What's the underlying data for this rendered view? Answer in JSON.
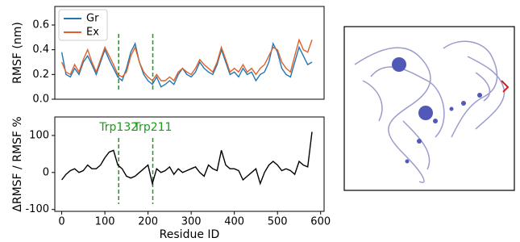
{
  "chart_data": [
    {
      "type": "line",
      "ylabel": "RMSF (nm)",
      "x": [
        0,
        10,
        20,
        30,
        40,
        50,
        60,
        70,
        80,
        90,
        100,
        110,
        120,
        130,
        140,
        150,
        160,
        170,
        180,
        190,
        200,
        210,
        220,
        230,
        240,
        250,
        260,
        270,
        280,
        290,
        300,
        310,
        320,
        330,
        340,
        350,
        360,
        370,
        380,
        390,
        400,
        410,
        420,
        430,
        440,
        450,
        460,
        470,
        480,
        490,
        500,
        510,
        520,
        530,
        540,
        550,
        560,
        570,
        580
      ],
      "series": [
        {
          "name": "Gr",
          "color": "#1f77b4",
          "values": [
            0.38,
            0.2,
            0.18,
            0.25,
            0.2,
            0.3,
            0.35,
            0.28,
            0.2,
            0.3,
            0.4,
            0.32,
            0.25,
            0.18,
            0.15,
            0.25,
            0.38,
            0.45,
            0.3,
            0.2,
            0.15,
            0.12,
            0.18,
            0.1,
            0.12,
            0.15,
            0.12,
            0.2,
            0.25,
            0.2,
            0.18,
            0.22,
            0.3,
            0.25,
            0.22,
            0.2,
            0.28,
            0.4,
            0.3,
            0.2,
            0.22,
            0.18,
            0.25,
            0.2,
            0.22,
            0.15,
            0.2,
            0.22,
            0.3,
            0.45,
            0.38,
            0.25,
            0.2,
            0.18,
            0.3,
            0.42,
            0.35,
            0.28,
            0.3
          ]
        },
        {
          "name": "Ex",
          "color": "#e0612a",
          "values": [
            0.3,
            0.22,
            0.2,
            0.28,
            0.22,
            0.32,
            0.4,
            0.3,
            0.22,
            0.32,
            0.42,
            0.35,
            0.28,
            0.2,
            0.18,
            0.22,
            0.35,
            0.42,
            0.3,
            0.22,
            0.18,
            0.15,
            0.2,
            0.15,
            0.15,
            0.18,
            0.15,
            0.22,
            0.25,
            0.22,
            0.2,
            0.25,
            0.32,
            0.28,
            0.25,
            0.22,
            0.3,
            0.42,
            0.32,
            0.22,
            0.25,
            0.22,
            0.28,
            0.22,
            0.25,
            0.2,
            0.25,
            0.28,
            0.35,
            0.42,
            0.4,
            0.3,
            0.25,
            0.22,
            0.35,
            0.48,
            0.4,
            0.38,
            0.48
          ]
        }
      ],
      "xlim": [
        -16,
        608
      ],
      "ylim": [
        0,
        0.75
      ],
      "yticks": [
        {
          "value": 0,
          "label": "0.0"
        },
        0.2,
        0.4,
        0.6
      ],
      "vlines": [
        {
          "x": 132
        },
        {
          "x": 211
        }
      ],
      "vline_color": "#1a9a1a",
      "legend": "upper left"
    },
    {
      "type": "line",
      "ylabel": "ΔRMSF / RMSF %",
      "xlabel": "Residue ID",
      "x": [
        0,
        10,
        20,
        30,
        40,
        50,
        60,
        70,
        80,
        90,
        100,
        110,
        120,
        130,
        140,
        150,
        160,
        170,
        180,
        190,
        200,
        210,
        220,
        230,
        240,
        250,
        260,
        270,
        280,
        290,
        300,
        310,
        320,
        330,
        340,
        350,
        360,
        370,
        380,
        390,
        400,
        410,
        420,
        430,
        440,
        450,
        460,
        470,
        480,
        490,
        500,
        510,
        520,
        530,
        540,
        550,
        560,
        570,
        580
      ],
      "series": [
        {
          "color": "#000000",
          "values": [
            -20,
            -5,
            5,
            10,
            0,
            5,
            20,
            10,
            10,
            20,
            40,
            55,
            60,
            20,
            10,
            -10,
            -15,
            -10,
            0,
            10,
            20,
            -30,
            10,
            0,
            5,
            15,
            -5,
            10,
            0,
            5,
            10,
            15,
            0,
            -10,
            20,
            10,
            5,
            60,
            20,
            10,
            10,
            5,
            -20,
            -10,
            0,
            10,
            -30,
            0,
            20,
            30,
            20,
            5,
            10,
            5,
            -5,
            30,
            20,
            15,
            110
          ]
        }
      ],
      "xlim": [
        -16,
        608
      ],
      "ylim": [
        -105,
        150
      ],
      "xticks": [
        0,
        100,
        200,
        300,
        400,
        500,
        600
      ],
      "yticks": [
        -100,
        0,
        100
      ],
      "vlines": [
        {
          "x": 132,
          "label": "Trp132"
        },
        {
          "x": 211,
          "label": "Trp211"
        }
      ],
      "vline_color": "#1a9a1a"
    }
  ]
}
